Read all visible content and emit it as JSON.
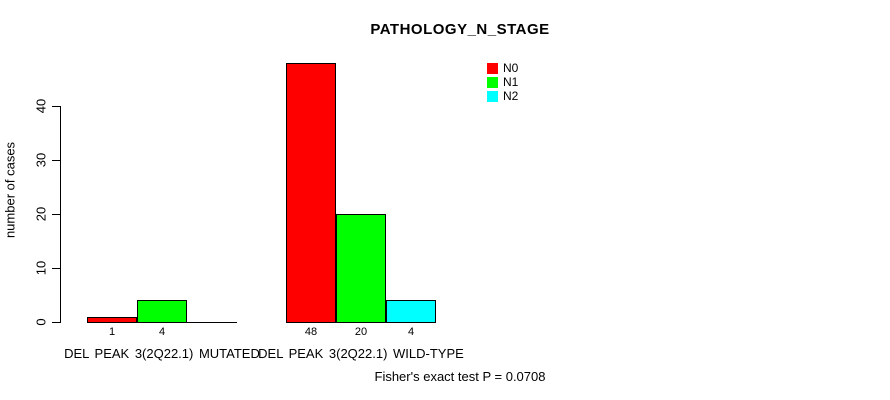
{
  "chart_data": {
    "type": "bar",
    "title": "PATHOLOGY_N_STAGE",
    "ylabel": "number of cases",
    "xlabel": "",
    "ylim": [
      0,
      40
    ],
    "yticks": [
      0,
      10,
      20,
      30,
      40
    ],
    "categories": [
      "DEL PEAK 3(2Q22.1) MUTATED",
      "DEL PEAK 3(2Q22.1) WILD-TYPE"
    ],
    "series": [
      {
        "name": "N0",
        "color": "#FF0000",
        "values": [
          1,
          48
        ]
      },
      {
        "name": "N1",
        "color": "#00FF00",
        "values": [
          4,
          20
        ]
      },
      {
        "name": "N2",
        "color": "#00FFFF",
        "values": [
          0,
          4
        ]
      }
    ],
    "bar_value_labels": [
      [
        "1",
        "4",
        ""
      ],
      [
        "48",
        "20",
        "4"
      ]
    ],
    "legend_position": "top-right",
    "grid": false,
    "annotation": "Fisher's exact test P = 0.0708"
  },
  "colors": {
    "axis": "#000000",
    "background": "#ffffff",
    "n0": "#FF0000",
    "n1": "#00FF00",
    "n2": "#00FFFF"
  }
}
